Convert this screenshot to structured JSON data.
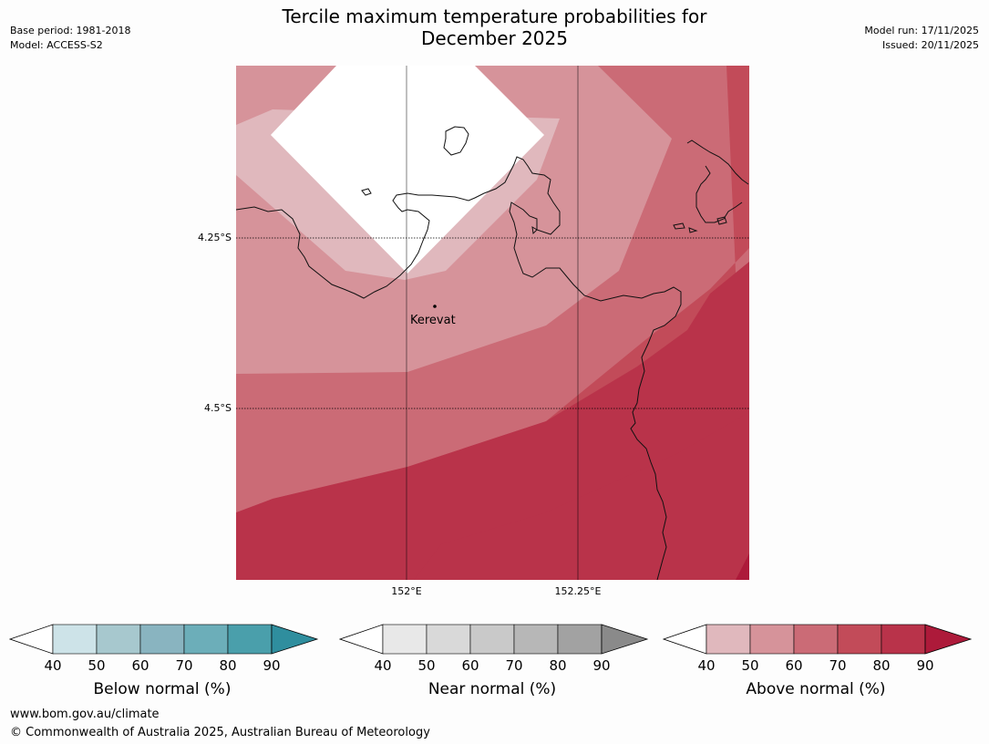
{
  "title_line1": "Tercile maximum temperature probabilities for",
  "title_line2": "December 2025",
  "base_period": "Base period: 1981-2018",
  "model": "Model: ACCESS-S2",
  "model_run": "Model run: 17/11/2025",
  "issued": "Issued: 20/11/2025",
  "map": {
    "place_label": "Kerevat",
    "lat_labels": [
      "4.25°S",
      "4.5°S"
    ],
    "lon_labels": [
      "152°E",
      "152.25°E"
    ]
  },
  "colorbars": [
    {
      "label": "Below normal (%)",
      "ticks": [
        "40",
        "50",
        "60",
        "70",
        "80",
        "90"
      ],
      "colors": [
        "#cde3e8",
        "#a7c8ce",
        "#89b4c0",
        "#6caeb9",
        "#4a9fab",
        "#2f8e9e"
      ]
    },
    {
      "label": "Near normal (%)",
      "ticks": [
        "40",
        "50",
        "60",
        "70",
        "80",
        "90"
      ],
      "colors": [
        "#e8e8e8",
        "#d9d9d9",
        "#c9c9c9",
        "#b7b7b7",
        "#a2a2a2",
        "#8a8a8a"
      ]
    },
    {
      "label": "Above normal (%)",
      "ticks": [
        "40",
        "50",
        "60",
        "70",
        "80",
        "90"
      ],
      "colors": [
        "#e0b8bd",
        "#d6939a",
        "#cb6b76",
        "#c24b59",
        "#b9334a",
        "#ad1a3a"
      ]
    }
  ],
  "footer_url": "www.bom.gov.au/climate",
  "footer_copyright": "© Commonwealth of Australia 2025, Australian Bureau of Meteorology"
}
